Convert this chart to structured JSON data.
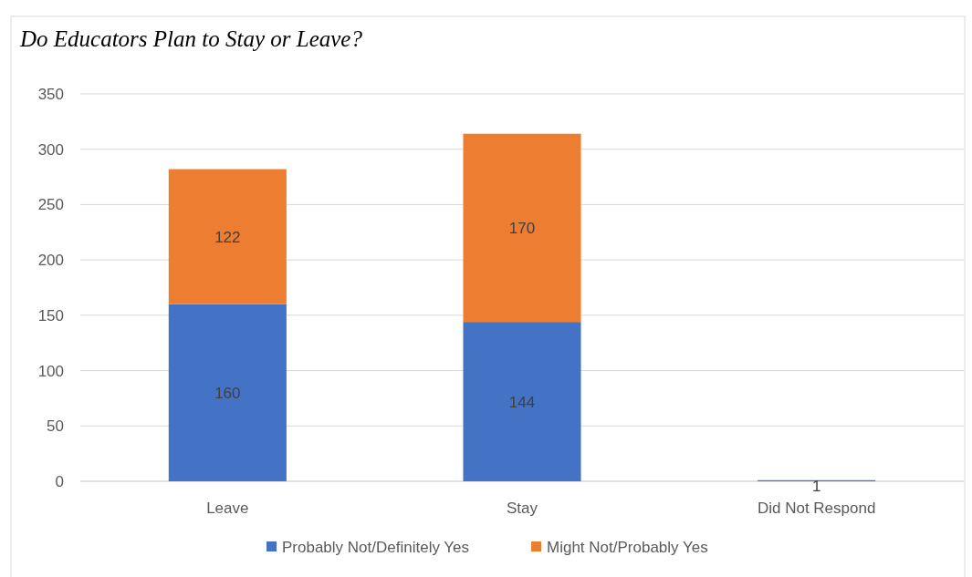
{
  "chart_data": {
    "type": "bar",
    "title": "Do Educators Plan to Stay or Leave?",
    "categories": [
      "Leave",
      "Stay",
      "Did Not Respond"
    ],
    "stacked": true,
    "series": [
      {
        "name": "Probably Not/Definitely Yes",
        "color": "#4472c4",
        "values": [
          160,
          144,
          1
        ]
      },
      {
        "name": "Might Not/Probably Yes",
        "color": "#ed7d31",
        "values": [
          122,
          170,
          null
        ]
      }
    ],
    "ylim": [
      0,
      350
    ],
    "yticks": [
      0,
      50,
      100,
      150,
      200,
      250,
      300,
      350
    ],
    "grid": "y",
    "legend": "bottom",
    "data_labels": true
  }
}
